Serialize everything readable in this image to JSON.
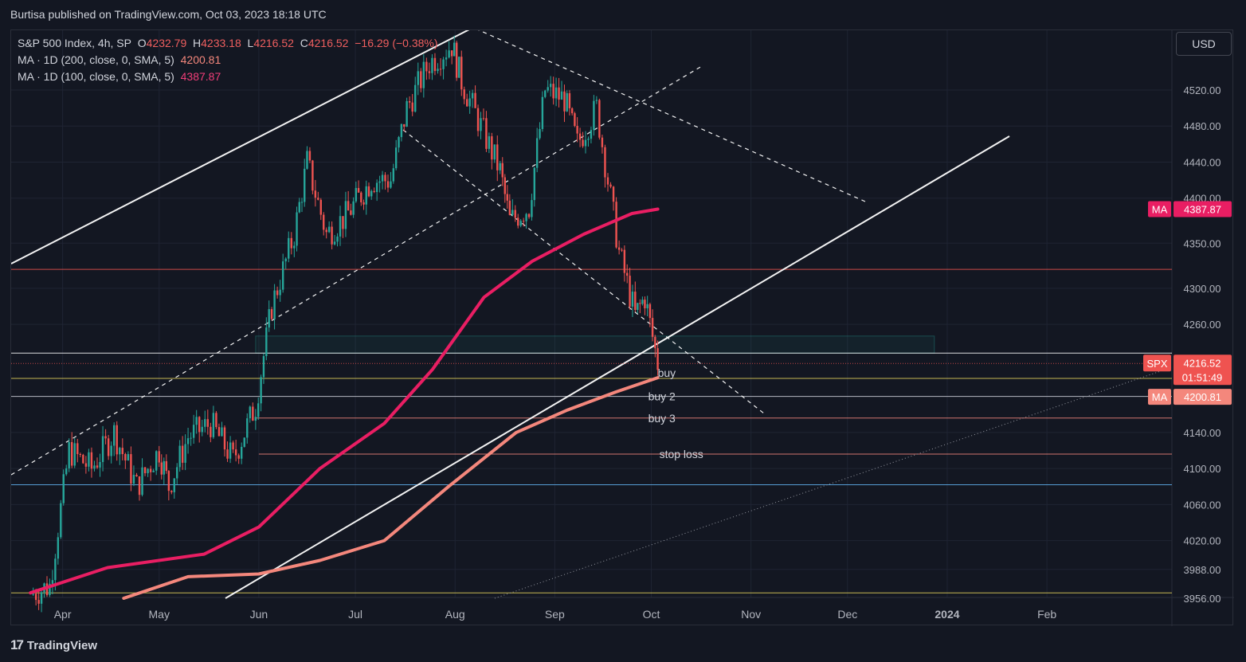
{
  "header": {
    "published": "Burtisa published on TradingView.com, Oct 03, 2023 18:18 UTC"
  },
  "legend": {
    "symbol": "S&P 500 Index, 4h, SP",
    "open_label": "O",
    "open": "4232.79",
    "high_label": "H",
    "high": "4233.18",
    "low_label": "L",
    "low": "4216.52",
    "close_label": "C",
    "close": "4216.52",
    "change": "−16.29 (−0.38%)",
    "ma200_label": "MA · 1D (200, close, 0, SMA, 5)",
    "ma200_value": "4200.81",
    "ma100_label": "MA · 1D (100, close, 0, SMA, 5)",
    "ma100_value": "4387.87"
  },
  "currency_button": "USD",
  "footer": {
    "brand": "TradingView"
  },
  "colors": {
    "background": "#131722",
    "up": "#26a69a",
    "down": "#ef5350",
    "ma100": "#e91e63",
    "ma200": "#f4877c"
  },
  "chart_data": {
    "type": "candlestick",
    "ylim": [
      3956,
      4560
    ],
    "y_ticks": [
      "4520.00",
      "4480.00",
      "4440.00",
      "4400.00",
      "4350.00",
      "4300.00",
      "4260.00",
      "4140.00",
      "4100.00",
      "4060.00",
      "4020.00",
      "3988.00",
      "3956.00"
    ],
    "x_ticks": [
      "Apr",
      "May",
      "Jun",
      "Jul",
      "Aug",
      "Sep",
      "Oct",
      "Nov",
      "Dec",
      "2024",
      "Feb"
    ],
    "close_series": [
      [
        "2023-03-22",
        3960
      ],
      [
        "2023-03-28",
        3970
      ],
      [
        "2023-04-03",
        4120
      ],
      [
        "2023-04-10",
        4100
      ],
      [
        "2023-04-17",
        4140
      ],
      [
        "2023-04-24",
        4080
      ],
      [
        "2023-05-01",
        4120
      ],
      [
        "2023-05-04",
        4080
      ],
      [
        "2023-05-10",
        4135
      ],
      [
        "2023-05-17",
        4150
      ],
      [
        "2023-05-24",
        4110
      ],
      [
        "2023-05-31",
        4170
      ],
      [
        "2023-06-05",
        4280
      ],
      [
        "2023-06-12",
        4360
      ],
      [
        "2023-06-16",
        4440
      ],
      [
        "2023-06-22",
        4360
      ],
      [
        "2023-06-28",
        4380
      ],
      [
        "2023-07-06",
        4420
      ],
      [
        "2023-07-12",
        4420
      ],
      [
        "2023-07-17",
        4500
      ],
      [
        "2023-07-24",
        4550
      ],
      [
        "2023-07-31",
        4570
      ],
      [
        "2023-08-03",
        4530
      ],
      [
        "2023-08-09",
        4480
      ],
      [
        "2023-08-15",
        4430
      ],
      [
        "2023-08-18",
        4375
      ],
      [
        "2023-08-24",
        4390
      ],
      [
        "2023-08-29",
        4520
      ],
      [
        "2023-09-04",
        4510
      ],
      [
        "2023-09-08",
        4460
      ],
      [
        "2023-09-14",
        4500
      ],
      [
        "2023-09-21",
        4340
      ],
      [
        "2023-09-26",
        4270
      ],
      [
        "2023-09-29",
        4290
      ],
      [
        "2023-10-03",
        4216.52
      ]
    ],
    "ma100": {
      "name": "MA · 1D (100, close, 0, SMA, 5)",
      "value": 4387.87,
      "points": [
        [
          "2023-03-22",
          3962
        ],
        [
          "2023-04-15",
          3990
        ],
        [
          "2023-05-15",
          4005
        ],
        [
          "2023-06-01",
          4035
        ],
        [
          "2023-06-20",
          4100
        ],
        [
          "2023-07-10",
          4150
        ],
        [
          "2023-07-25",
          4210
        ],
        [
          "2023-08-10",
          4290
        ],
        [
          "2023-08-25",
          4330
        ],
        [
          "2023-09-10",
          4360
        ],
        [
          "2023-09-25",
          4383
        ],
        [
          "2023-10-03",
          4387.87
        ]
      ]
    },
    "ma200": {
      "name": "MA · 1D (200, close, 0, SMA, 5)",
      "value": 4200.81,
      "points": [
        [
          "2023-04-20",
          3956
        ],
        [
          "2023-05-10",
          3980
        ],
        [
          "2023-06-01",
          3983
        ],
        [
          "2023-06-20",
          3998
        ],
        [
          "2023-07-10",
          4020
        ],
        [
          "2023-07-30",
          4080
        ],
        [
          "2023-08-20",
          4140
        ],
        [
          "2023-09-05",
          4165
        ],
        [
          "2023-09-20",
          4185
        ],
        [
          "2023-10-03",
          4200.81
        ]
      ]
    },
    "horizontal_levels": [
      {
        "price": 4321,
        "color": "#ef5350"
      },
      {
        "price": 4228,
        "color": "#ffffff"
      },
      {
        "price": 4200,
        "color": "#e6d35c",
        "label": "buy"
      },
      {
        "price": 4180,
        "color": "#d1d4dc",
        "label": "buy 2"
      },
      {
        "price": 4156,
        "color": "#f4877c",
        "label": "buy 3"
      },
      {
        "price": 4116,
        "color": "#f4877c",
        "label": "stop loss"
      },
      {
        "price": 4082,
        "color": "#64b5f6"
      },
      {
        "price": 3962,
        "color": "#e6d35c"
      }
    ],
    "price_labels": {
      "spx": {
        "tag": "SPX",
        "price": "4216.52",
        "countdown": "01:51:49"
      },
      "ma100": {
        "tag": "MA",
        "price": "4387.87"
      },
      "ma200": {
        "tag": "MA",
        "price": "4200.81"
      }
    }
  }
}
